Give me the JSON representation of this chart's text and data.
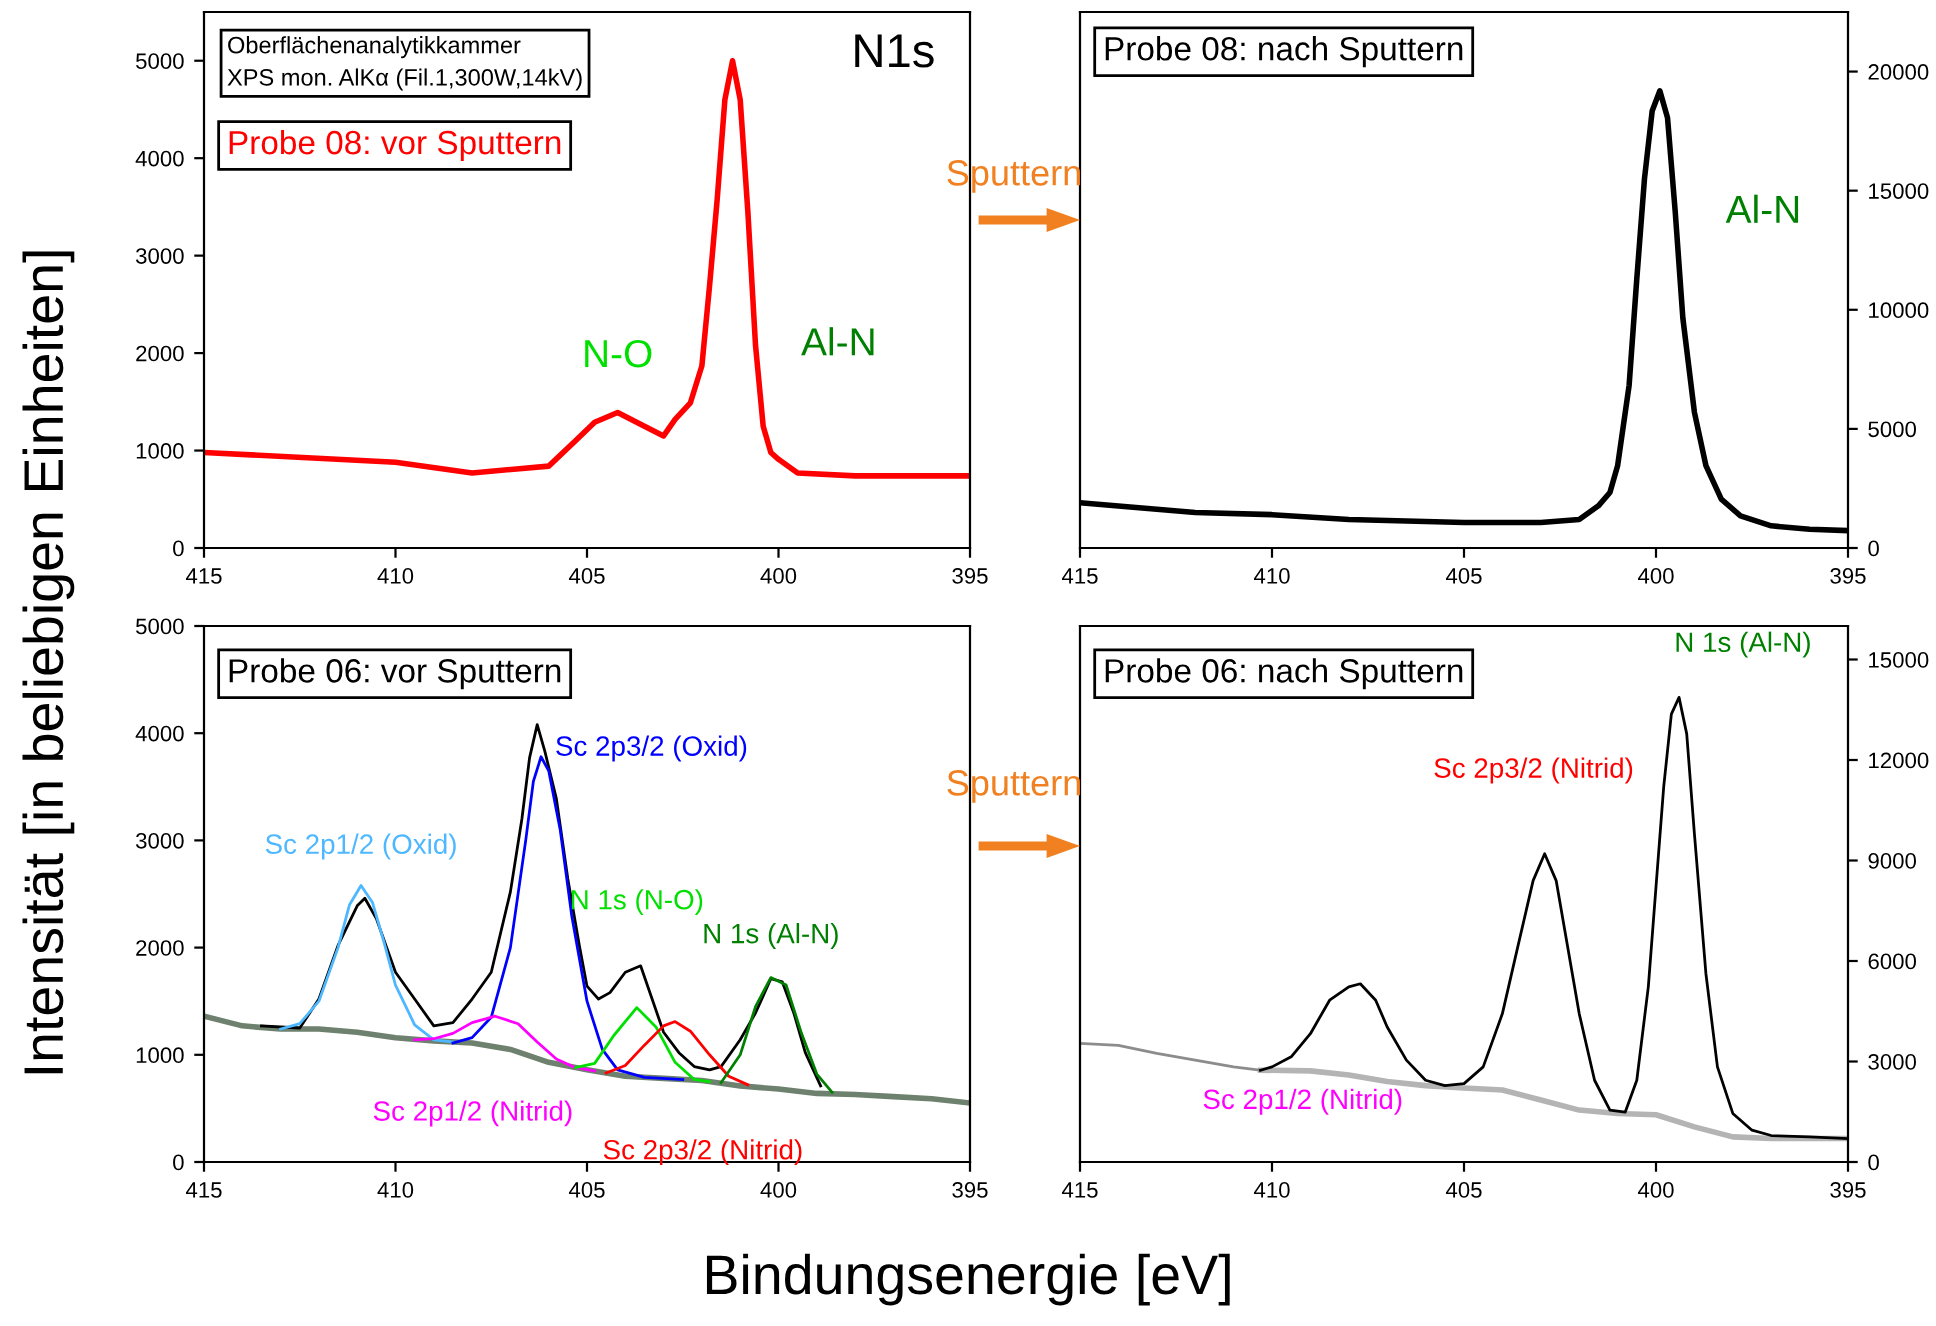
{
  "chart_data": [
    {
      "type": "line",
      "title": "N1s",
      "xlim": [
        415,
        395
      ],
      "xticks": [
        415,
        410,
        405,
        400,
        395
      ],
      "ylim": [
        0,
        5500
      ],
      "yticks": [
        0,
        1000,
        2000,
        3000,
        4000,
        5000
      ],
      "annotations": [
        "Oberflächenanalytikkammer\nXPS mon. AlKα (Fil.1,300W,14kV)",
        "Probe 08: vor Sputtern",
        {
          "text": "N-O",
          "x": 404.2,
          "y": 1390
        },
        {
          "text": "Al-N",
          "x": 400.6,
          "y": 2080
        },
        "Sputtern"
      ],
      "series": [
        {
          "color": "#ff0000",
          "x": [
            415,
            410,
            408,
            406,
            405.3,
            404.8,
            404.2,
            403.5,
            403,
            402.7,
            402.3,
            402.0,
            401.8,
            401.6,
            401.4,
            401.2,
            401.0,
            400.8,
            400.6,
            400.4,
            400.2,
            400.0,
            399.5,
            398,
            396,
            395
          ],
          "values": [
            980,
            880,
            770,
            840,
            1100,
            1290,
            1390,
            1250,
            1150,
            1320,
            1490,
            1870,
            2690,
            3580,
            4600,
            5000,
            4600,
            3450,
            2080,
            1250,
            980,
            910,
            770,
            740,
            740,
            740
          ]
        }
      ]
    },
    {
      "type": "line",
      "xlim": [
        415,
        395
      ],
      "xticks": [
        415,
        410,
        405,
        400,
        395
      ],
      "ylim": [
        0,
        22500
      ],
      "yticks": [
        0,
        5000,
        10000,
        15000,
        20000
      ],
      "annotations": [
        "Probe 08: nach Sputtern",
        {
          "text": "Al-N",
          "x": 399.3,
          "y": 9640
        }
      ],
      "series": [
        {
          "color": "#000000",
          "x": [
            415,
            412,
            410,
            408,
            405,
            403,
            402,
            401.5,
            401.2,
            401.0,
            400.7,
            400.5,
            400.3,
            400.1,
            399.9,
            399.7,
            399.5,
            399.3,
            399.0,
            398.7,
            398.3,
            397.8,
            397,
            396,
            395
          ],
          "values": [
            1900,
            1490,
            1400,
            1200,
            1070,
            1070,
            1200,
            1770,
            2330,
            3450,
            6830,
            11300,
            15500,
            18340,
            19190,
            18060,
            14130,
            9640,
            5700,
            3460,
            2050,
            1350,
            930,
            790,
            730
          ]
        }
      ]
    },
    {
      "type": "line",
      "xlim": [
        415,
        395
      ],
      "xticks": [
        415,
        410,
        405,
        400,
        395
      ],
      "ylim": [
        0,
        5000
      ],
      "yticks": [
        0,
        1000,
        2000,
        3000,
        4000,
        5000
      ],
      "xlabel": "Bindungsenergie [eV]",
      "ylabel": "Intensität [in beliebigen Einheiten]",
      "annotations": [
        "Probe 06: vor Sputtern",
        "Sputtern"
      ],
      "series": [
        {
          "color": "#6e806e",
          "x": [
            415,
            414,
            413,
            412,
            411,
            410,
            409,
            408,
            407,
            406,
            405,
            404,
            403,
            402,
            401,
            400,
            399,
            398,
            397,
            396,
            395
          ],
          "values": [
            1360,
            1270,
            1240,
            1240,
            1210,
            1160,
            1130,
            1110,
            1050,
            930,
            860,
            800,
            780,
            760,
            710,
            680,
            640,
            630,
            610,
            590,
            550
          ]
        },
        {
          "color": "#000000",
          "x": [
            413.5,
            412.5,
            412.0,
            411.5,
            411.0,
            410.8,
            410.5,
            410.0,
            409.5,
            409.0,
            408.5,
            408.0,
            407.5,
            407.0,
            406.7,
            406.5,
            406.3,
            406.1,
            405.8,
            405.5,
            405.2,
            405.0,
            404.7,
            404.4,
            404.0,
            403.6,
            403.3,
            403.0,
            402.6,
            402.2,
            401.8,
            401.5,
            401.0,
            400.6,
            400.2,
            399.9,
            399.6,
            399.3,
            398.9
          ],
          "values": [
            1270,
            1250,
            1520,
            2020,
            2390,
            2460,
            2270,
            1770,
            1520,
            1270,
            1300,
            1520,
            1770,
            2520,
            3200,
            3770,
            4080,
            3830,
            3390,
            2640,
            2020,
            1640,
            1520,
            1580,
            1770,
            1830,
            1520,
            1210,
            1020,
            890,
            860,
            890,
            1140,
            1390,
            1710,
            1680,
            1390,
            1020,
            710
          ]
        },
        {
          "name": "Sc 2p1/2 (Oxid)",
          "color": "#4db8ff",
          "x": [
            413.0,
            412.5,
            412.0,
            411.5,
            411.2,
            410.9,
            410.6,
            410.3,
            410.0,
            409.5,
            409.0,
            408.5
          ],
          "values": [
            1240,
            1290,
            1500,
            2000,
            2400,
            2580,
            2420,
            2050,
            1650,
            1280,
            1140,
            1120
          ]
        },
        {
          "name": "Sc 2p3/2 (Oxid)",
          "color": "#0000ff",
          "x": [
            408.5,
            408.0,
            407.5,
            407.0,
            406.6,
            406.4,
            406.2,
            406.0,
            405.7,
            405.4,
            405.0,
            404.6,
            404.2,
            403.5,
            402.5
          ],
          "values": [
            1110,
            1160,
            1350,
            2000,
            3000,
            3550,
            3780,
            3650,
            3100,
            2300,
            1500,
            1050,
            860,
            790,
            770
          ]
        },
        {
          "name": "Sc 2p1/2 (Nitrid)",
          "color": "#ff00ff",
          "x": [
            409.5,
            409.0,
            408.5,
            408.0,
            407.4,
            406.8,
            406.3,
            405.8,
            405.3,
            404.8
          ],
          "values": [
            1140,
            1150,
            1200,
            1300,
            1360,
            1290,
            1120,
            960,
            880,
            850
          ]
        },
        {
          "name": "N 1s (N-O)",
          "color": "#00e000",
          "x": [
            405.3,
            404.8,
            404.3,
            403.7,
            403.2,
            402.7,
            402.2,
            401.8
          ],
          "values": [
            880,
            920,
            1180,
            1440,
            1260,
            930,
            770,
            750
          ]
        },
        {
          "name": "Sc 2p3/2 (Nitrid)",
          "color": "#ff0000",
          "x": [
            404.5,
            404.0,
            403.5,
            403.0,
            402.7,
            402.3,
            401.8,
            401.3,
            400.8
          ],
          "values": [
            830,
            900,
            1090,
            1270,
            1310,
            1220,
            1000,
            800,
            720
          ]
        },
        {
          "name": "N 1s (Al-N)",
          "color": "#008000",
          "x": [
            401.5,
            401.0,
            400.6,
            400.2,
            399.8,
            399.4,
            399.0,
            398.6
          ],
          "values": [
            740,
            1000,
            1450,
            1720,
            1650,
            1200,
            820,
            650
          ]
        }
      ]
    },
    {
      "type": "line",
      "xlim": [
        415,
        395
      ],
      "xticks": [
        415,
        410,
        405,
        400,
        395
      ],
      "ylim": [
        0,
        16000
      ],
      "yticks": [
        0,
        3000,
        6000,
        9000,
        12000,
        15000
      ],
      "annotations": [
        "Probe 06: nach Sputtern",
        {
          "text": "Sc 2p3/2 (Nitrid)",
          "x": 402.9,
          "y": 9200
        },
        {
          "text": "N 1s (Al-N)",
          "x": 399.4,
          "y": 13870
        },
        "Sc 2p1/2 (Nitrid)"
      ],
      "series": [
        {
          "color": "#b4b4b4",
          "x": [
            410.3,
            409.0,
            408,
            407,
            406,
            405,
            404,
            403,
            402,
            401,
            400,
            399,
            398,
            397,
            395
          ],
          "values": [
            2740,
            2720,
            2600,
            2400,
            2280,
            2210,
            2150,
            1850,
            1550,
            1450,
            1410,
            1050,
            750,
            700,
            700
          ]
        },
        {
          "color": "#8c8c8c",
          "x": [
            415,
            414,
            413,
            412,
            411,
            410.3
          ],
          "values": [
            3540,
            3480,
            3240,
            3040,
            2840,
            2740
          ]
        },
        {
          "color": "#000000",
          "x": [
            410.3,
            410.0,
            409.5,
            409.0,
            408.5,
            408.0,
            407.7,
            407.3,
            407.0,
            406.5,
            406.0,
            405.5,
            405.0,
            404.5,
            404.0,
            403.6,
            403.2,
            402.9,
            402.6,
            402.3,
            402.0,
            401.6,
            401.2,
            400.8,
            400.5,
            400.2,
            400.0,
            399.8,
            399.6,
            399.4,
            399.2,
            399.0,
            398.7,
            398.4,
            398.0,
            397.5,
            397.0,
            396,
            395
          ],
          "values": [
            2740,
            2840,
            3140,
            3830,
            4830,
            5230,
            5320,
            4830,
            4030,
            3040,
            2440,
            2280,
            2340,
            2840,
            4430,
            6420,
            8400,
            9200,
            8400,
            6420,
            4430,
            2440,
            1550,
            1490,
            2440,
            5230,
            8210,
            11190,
            13370,
            13870,
            12780,
            9800,
            5620,
            2840,
            1450,
            950,
            790,
            750,
            700
          ]
        }
      ]
    }
  ]
}
